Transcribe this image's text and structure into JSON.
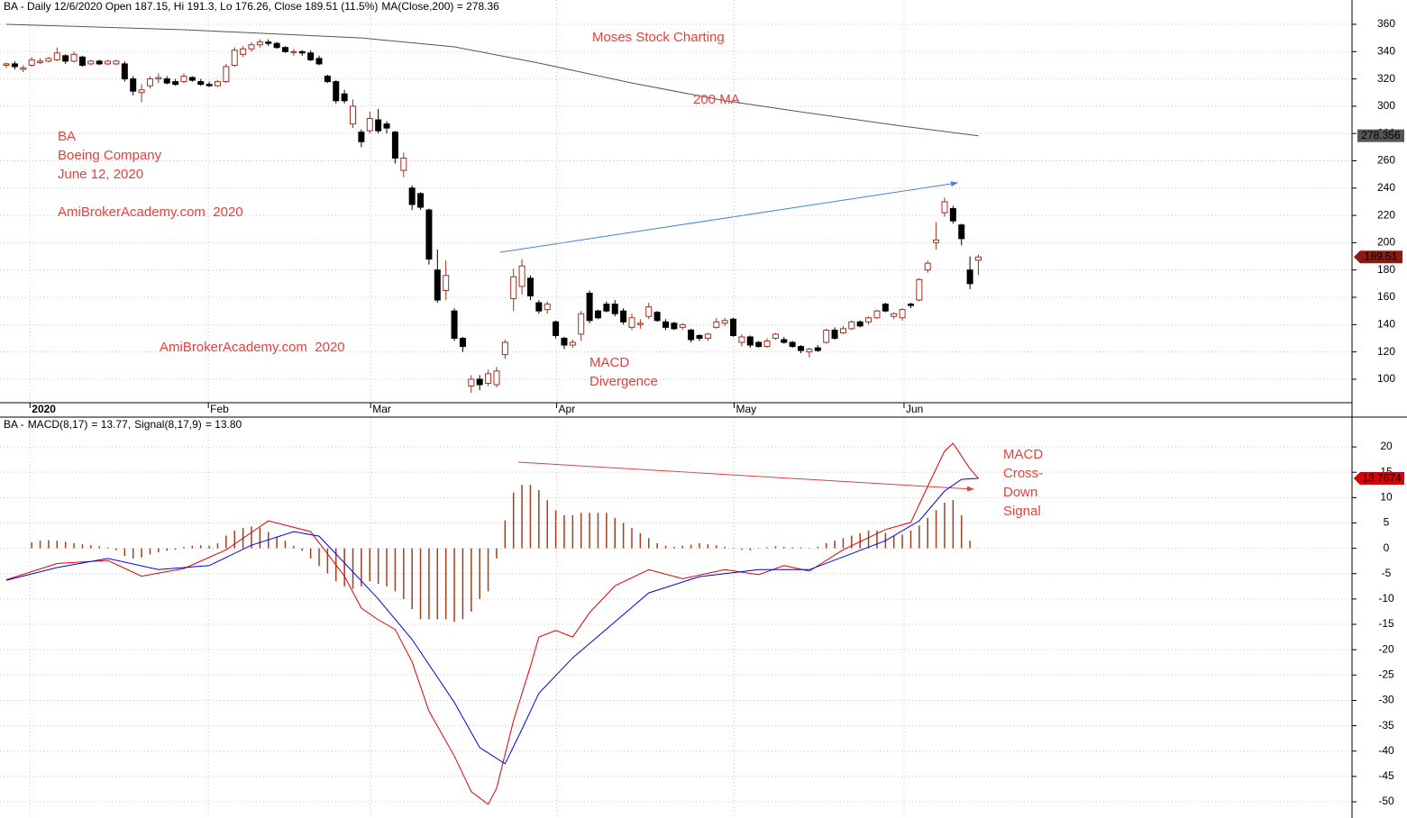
{
  "chart_data": [
    {
      "type": "candlestick",
      "title": "BA - Daily 12/6/2020 Open 187.15, Hi 191.3, Lo 176.26, Close 189.51 (11.5%)",
      "subtitle": "MA(Close,200) = 278.36",
      "open": [
        330,
        331,
        327,
        330,
        332,
        333,
        334,
        337,
        333,
        336,
        331,
        333,
        331,
        331,
        331,
        320,
        310,
        315,
        320,
        320,
        318,
        318,
        321,
        318,
        316,
        315,
        318,
        330,
        338,
        342,
        345,
        347,
        346,
        343,
        340,
        340,
        339,
        335,
        322,
        318,
        309,
        287,
        281,
        282,
        290,
        287,
        281,
        253,
        240,
        236,
        224,
        180,
        165,
        150,
        130,
        95,
        100,
        97,
        96,
        118,
        159,
        168,
        174,
        156,
        151,
        142,
        130,
        125,
        133,
        163,
        150,
        155,
        155,
        150,
        138,
        140,
        146,
        149,
        142,
        141,
        138,
        136,
        132,
        130,
        138,
        141,
        144,
        127,
        131,
        127,
        124,
        130,
        129,
        127,
        124,
        120,
        123,
        127,
        136,
        134,
        137,
        142,
        142,
        145,
        155,
        146,
        145,
        155,
        158,
        180,
        200,
        222,
        225,
        213,
        180,
        187.15
      ],
      "high": [
        332,
        333,
        330,
        336,
        335,
        336,
        343,
        338,
        340,
        337,
        334,
        334,
        334,
        334,
        333,
        322,
        316,
        322,
        324,
        322,
        320,
        324,
        322,
        320,
        318,
        319,
        331,
        343,
        344,
        347,
        349,
        349,
        347,
        344,
        342,
        341,
        341,
        337,
        323,
        319,
        312,
        305,
        283,
        296,
        298,
        289,
        282,
        266,
        242,
        237,
        225,
        195,
        187,
        152,
        131,
        103,
        103,
        107,
        109,
        129,
        181,
        188,
        176,
        158,
        157,
        143,
        131,
        129,
        150,
        165,
        151,
        157,
        158,
        152,
        148,
        144,
        156,
        150,
        144,
        142,
        141,
        137,
        133,
        134,
        145,
        145,
        145,
        133,
        132,
        128,
        130,
        134,
        131,
        128,
        125,
        123,
        125,
        137,
        138,
        139,
        143,
        143,
        146,
        151,
        156,
        149,
        152,
        156,
        174,
        187,
        215,
        233,
        227,
        214,
        190,
        191.3
      ],
      "low": [
        328,
        327,
        325,
        329,
        331,
        332,
        333,
        331,
        332,
        329,
        330,
        330,
        330,
        330,
        318,
        308,
        303,
        313,
        317,
        316,
        315,
        317,
        318,
        315,
        314,
        314,
        317,
        329,
        336,
        340,
        343,
        344,
        342,
        339,
        337,
        337,
        333,
        330,
        317,
        302,
        302,
        284,
        270,
        280,
        280,
        280,
        258,
        248,
        224,
        224,
        184,
        156,
        158,
        128,
        120,
        90,
        92,
        95,
        94,
        115,
        150,
        162,
        158,
        148,
        148,
        130,
        122,
        123,
        128,
        141,
        144,
        149,
        146,
        140,
        136,
        137,
        144,
        142,
        136,
        136,
        136,
        127,
        128,
        128,
        137,
        139,
        131,
        124,
        123,
        123,
        123,
        129,
        126,
        123,
        119,
        116,
        120,
        126,
        129,
        133,
        136,
        138,
        140,
        144,
        149,
        144,
        143,
        152,
        157,
        178,
        195,
        219,
        214,
        198,
        166,
        176.26
      ],
      "close": [
        331,
        329,
        328,
        334,
        333,
        335,
        339,
        333,
        338,
        330,
        333,
        331,
        333,
        333,
        320,
        311,
        312,
        320,
        321,
        317,
        316,
        322,
        319,
        316,
        315,
        318,
        329,
        341,
        342,
        345,
        347,
        346,
        343,
        340,
        340,
        339,
        334,
        331,
        318,
        304,
        304,
        300,
        274,
        291,
        282,
        284,
        262,
        262,
        228,
        226,
        188,
        158,
        176,
        130,
        124,
        100,
        96,
        104,
        106,
        127,
        175,
        183,
        161,
        150,
        155,
        132,
        125,
        127,
        148,
        143,
        145,
        150,
        148,
        142,
        145,
        141,
        153,
        143,
        138,
        137,
        140,
        129,
        130,
        133,
        142,
        143,
        132,
        131,
        125,
        124,
        128,
        133,
        127,
        124,
        121,
        122,
        121,
        136,
        130,
        137,
        142,
        139,
        145,
        150,
        150,
        148,
        151,
        154,
        173,
        185,
        202,
        230,
        216,
        203,
        170,
        189.51
      ],
      "up_color": "#a0301e",
      "down_color": "#000000",
      "close_label_color": "#8b1a10",
      "overlay": {
        "x": [
          0,
          21,
          42,
          53,
          63,
          74,
          85,
          95,
          106,
          115
        ],
        "values": [
          360,
          356,
          350,
          343.5,
          331.6,
          317,
          304,
          295,
          285.4,
          278.356
        ],
        "color": "#555555"
      },
      "xlim": [
        -0.75,
        159.2
      ],
      "ylim": [
        82.8,
        377.8
      ],
      "xticks": [
        {
          "value": 2.8,
          "label": "2020"
        },
        {
          "value": 23.9,
          "label": "Feb"
        },
        {
          "value": 43.1,
          "label": "Mar"
        },
        {
          "value": 65.1,
          "label": "Apr"
        },
        {
          "value": 86.1,
          "label": "May"
        },
        {
          "value": 106.2,
          "label": "Jun"
        }
      ],
      "yticks": [
        100,
        120,
        140,
        160,
        180,
        200,
        220,
        240,
        260,
        280,
        300,
        320,
        340,
        360
      ],
      "grid": true,
      "annotations": [
        "Moses Stock Charting",
        "200 MA",
        "BA",
        "Boeing Company",
        "June 12, 2020",
        "AmiBrokerAcademy.com  2020",
        "AmiBrokerAcademy.com  2020",
        "MACD",
        "Divergence"
      ]
    },
    {
      "type": "macd",
      "title": "BA -",
      "readouts": [
        "= 13.77,",
        "= 13.80"
      ],
      "series": [
        {
          "name": "MACD(8,17)",
          "color": "#e00000",
          "x": [
            0,
            6,
            12,
            16,
            21,
            26,
            31,
            36,
            40,
            42,
            44,
            46,
            48,
            50,
            53,
            55,
            57,
            58,
            60,
            62,
            63,
            65,
            67,
            69,
            72,
            76,
            80,
            85,
            89,
            92,
            95,
            99,
            104,
            107,
            109,
            111,
            112,
            114,
            115
          ],
          "values": [
            -6.2,
            -3,
            -2.4,
            -5.5,
            -4,
            -0.3,
            5.4,
            3.3,
            -5.5,
            -11.8,
            -14.1,
            -16,
            -22.4,
            -32.1,
            -41,
            -48,
            -50.5,
            -47.3,
            -34,
            -23.3,
            -17.5,
            -16.2,
            -17.5,
            -12.7,
            -7.4,
            -4.2,
            -6,
            -4.2,
            -5.2,
            -3.4,
            -4.5,
            -0.3,
            3.7,
            5.1,
            12.2,
            19.2,
            20.7,
            15.7,
            13.7674
          ]
        },
        {
          "name": "Signal(8,17,9)",
          "color": "#0000e0",
          "x": [
            0,
            6,
            12,
            18,
            24,
            29,
            34,
            37,
            40,
            44,
            48,
            53,
            56,
            59,
            61,
            63,
            67,
            72,
            76,
            82,
            89,
            95,
            99,
            104,
            108,
            111,
            113,
            115
          ],
          "values": [
            -6.3,
            -3.8,
            -2,
            -4.2,
            -3.4,
            0.6,
            3.3,
            2.4,
            -2.9,
            -10,
            -18,
            -30.4,
            -39.3,
            -42.5,
            -35.7,
            -28.6,
            -21.6,
            -14.5,
            -8.8,
            -5.6,
            -4.2,
            -4.2,
            -1.7,
            1.5,
            5.4,
            11.3,
            13.6,
            13.8021
          ]
        }
      ],
      "histogram": {
        "color": "#a0401e",
        "values": [
          0,
          0,
          0,
          1.2,
          1.5,
          1.6,
          1.5,
          1.3,
          1.0,
          0.8,
          0.6,
          0.4,
          0.2,
          -0.4,
          -1.5,
          -2,
          -1.8,
          -1.2,
          -0.8,
          -0.5,
          -0.3,
          0.3,
          0.5,
          0.6,
          0.5,
          1.0,
          2.5,
          3.5,
          4,
          4.3,
          4,
          3.2,
          2.3,
          1.5,
          0.5,
          -0.5,
          -2,
          -3.5,
          -5,
          -6.5,
          -7.5,
          -8,
          -7.5,
          -6.5,
          -7,
          -7.5,
          -8.5,
          -10,
          -12,
          -14,
          -14,
          -14,
          -14,
          -14.5,
          -14,
          -12.5,
          -10,
          -8.5,
          -2,
          5.5,
          11,
          12.5,
          12.5,
          11.5,
          9.5,
          7.5,
          6.5,
          6.5,
          7,
          7,
          7,
          7,
          6,
          5,
          4,
          3,
          2,
          1,
          0.5,
          0.3,
          0.5,
          0.7,
          1,
          0.8,
          0.6,
          0.3,
          0.1,
          -0.3,
          -0.4,
          0.1,
          0.2,
          0.4,
          0.3,
          0.2,
          0.2,
          0.1,
          0.3,
          1,
          1.5,
          2,
          2.5,
          3,
          3.5,
          3.5,
          3,
          2.5,
          2.7,
          3.5,
          4.5,
          6,
          7.5,
          9,
          9.5,
          6.5,
          1.5,
          -0.03
        ]
      },
      "ylim": [
        -53.2,
        25.7
      ],
      "yticks": [
        -50,
        -45,
        -40,
        -35,
        -30,
        -25,
        -20,
        -15,
        -10,
        -5,
        0,
        5,
        10,
        15,
        20
      ],
      "grid": true,
      "annotations": [
        "MACD",
        "Cross-",
        "Down",
        "Signal"
      ]
    }
  ]
}
